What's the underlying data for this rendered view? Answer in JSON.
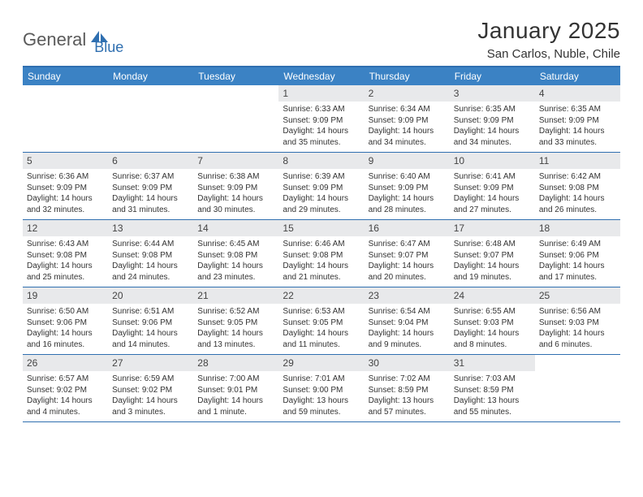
{
  "logo": {
    "part1": "General",
    "part2": "Blue"
  },
  "title": "January 2025",
  "location": "San Carlos, Nuble, Chile",
  "colors": {
    "header_bg": "#3b82c4",
    "header_text": "#ffffff",
    "border": "#2f6fb0",
    "daynum_bg": "#e8e9eb",
    "body_text": "#333333",
    "logo_gray": "#5a5a5a",
    "logo_blue": "#2f6fb0"
  },
  "weekdays": [
    "Sunday",
    "Monday",
    "Tuesday",
    "Wednesday",
    "Thursday",
    "Friday",
    "Saturday"
  ],
  "weeks": [
    [
      {
        "n": "",
        "sr": "",
        "ss": "",
        "dl": ""
      },
      {
        "n": "",
        "sr": "",
        "ss": "",
        "dl": ""
      },
      {
        "n": "",
        "sr": "",
        "ss": "",
        "dl": ""
      },
      {
        "n": "1",
        "sr": "Sunrise: 6:33 AM",
        "ss": "Sunset: 9:09 PM",
        "dl": "Daylight: 14 hours and 35 minutes."
      },
      {
        "n": "2",
        "sr": "Sunrise: 6:34 AM",
        "ss": "Sunset: 9:09 PM",
        "dl": "Daylight: 14 hours and 34 minutes."
      },
      {
        "n": "3",
        "sr": "Sunrise: 6:35 AM",
        "ss": "Sunset: 9:09 PM",
        "dl": "Daylight: 14 hours and 34 minutes."
      },
      {
        "n": "4",
        "sr": "Sunrise: 6:35 AM",
        "ss": "Sunset: 9:09 PM",
        "dl": "Daylight: 14 hours and 33 minutes."
      }
    ],
    [
      {
        "n": "5",
        "sr": "Sunrise: 6:36 AM",
        "ss": "Sunset: 9:09 PM",
        "dl": "Daylight: 14 hours and 32 minutes."
      },
      {
        "n": "6",
        "sr": "Sunrise: 6:37 AM",
        "ss": "Sunset: 9:09 PM",
        "dl": "Daylight: 14 hours and 31 minutes."
      },
      {
        "n": "7",
        "sr": "Sunrise: 6:38 AM",
        "ss": "Sunset: 9:09 PM",
        "dl": "Daylight: 14 hours and 30 minutes."
      },
      {
        "n": "8",
        "sr": "Sunrise: 6:39 AM",
        "ss": "Sunset: 9:09 PM",
        "dl": "Daylight: 14 hours and 29 minutes."
      },
      {
        "n": "9",
        "sr": "Sunrise: 6:40 AM",
        "ss": "Sunset: 9:09 PM",
        "dl": "Daylight: 14 hours and 28 minutes."
      },
      {
        "n": "10",
        "sr": "Sunrise: 6:41 AM",
        "ss": "Sunset: 9:09 PM",
        "dl": "Daylight: 14 hours and 27 minutes."
      },
      {
        "n": "11",
        "sr": "Sunrise: 6:42 AM",
        "ss": "Sunset: 9:08 PM",
        "dl": "Daylight: 14 hours and 26 minutes."
      }
    ],
    [
      {
        "n": "12",
        "sr": "Sunrise: 6:43 AM",
        "ss": "Sunset: 9:08 PM",
        "dl": "Daylight: 14 hours and 25 minutes."
      },
      {
        "n": "13",
        "sr": "Sunrise: 6:44 AM",
        "ss": "Sunset: 9:08 PM",
        "dl": "Daylight: 14 hours and 24 minutes."
      },
      {
        "n": "14",
        "sr": "Sunrise: 6:45 AM",
        "ss": "Sunset: 9:08 PM",
        "dl": "Daylight: 14 hours and 23 minutes."
      },
      {
        "n": "15",
        "sr": "Sunrise: 6:46 AM",
        "ss": "Sunset: 9:08 PM",
        "dl": "Daylight: 14 hours and 21 minutes."
      },
      {
        "n": "16",
        "sr": "Sunrise: 6:47 AM",
        "ss": "Sunset: 9:07 PM",
        "dl": "Daylight: 14 hours and 20 minutes."
      },
      {
        "n": "17",
        "sr": "Sunrise: 6:48 AM",
        "ss": "Sunset: 9:07 PM",
        "dl": "Daylight: 14 hours and 19 minutes."
      },
      {
        "n": "18",
        "sr": "Sunrise: 6:49 AM",
        "ss": "Sunset: 9:06 PM",
        "dl": "Daylight: 14 hours and 17 minutes."
      }
    ],
    [
      {
        "n": "19",
        "sr": "Sunrise: 6:50 AM",
        "ss": "Sunset: 9:06 PM",
        "dl": "Daylight: 14 hours and 16 minutes."
      },
      {
        "n": "20",
        "sr": "Sunrise: 6:51 AM",
        "ss": "Sunset: 9:06 PM",
        "dl": "Daylight: 14 hours and 14 minutes."
      },
      {
        "n": "21",
        "sr": "Sunrise: 6:52 AM",
        "ss": "Sunset: 9:05 PM",
        "dl": "Daylight: 14 hours and 13 minutes."
      },
      {
        "n": "22",
        "sr": "Sunrise: 6:53 AM",
        "ss": "Sunset: 9:05 PM",
        "dl": "Daylight: 14 hours and 11 minutes."
      },
      {
        "n": "23",
        "sr": "Sunrise: 6:54 AM",
        "ss": "Sunset: 9:04 PM",
        "dl": "Daylight: 14 hours and 9 minutes."
      },
      {
        "n": "24",
        "sr": "Sunrise: 6:55 AM",
        "ss": "Sunset: 9:03 PM",
        "dl": "Daylight: 14 hours and 8 minutes."
      },
      {
        "n": "25",
        "sr": "Sunrise: 6:56 AM",
        "ss": "Sunset: 9:03 PM",
        "dl": "Daylight: 14 hours and 6 minutes."
      }
    ],
    [
      {
        "n": "26",
        "sr": "Sunrise: 6:57 AM",
        "ss": "Sunset: 9:02 PM",
        "dl": "Daylight: 14 hours and 4 minutes."
      },
      {
        "n": "27",
        "sr": "Sunrise: 6:59 AM",
        "ss": "Sunset: 9:02 PM",
        "dl": "Daylight: 14 hours and 3 minutes."
      },
      {
        "n": "28",
        "sr": "Sunrise: 7:00 AM",
        "ss": "Sunset: 9:01 PM",
        "dl": "Daylight: 14 hours and 1 minute."
      },
      {
        "n": "29",
        "sr": "Sunrise: 7:01 AM",
        "ss": "Sunset: 9:00 PM",
        "dl": "Daylight: 13 hours and 59 minutes."
      },
      {
        "n": "30",
        "sr": "Sunrise: 7:02 AM",
        "ss": "Sunset: 8:59 PM",
        "dl": "Daylight: 13 hours and 57 minutes."
      },
      {
        "n": "31",
        "sr": "Sunrise: 7:03 AM",
        "ss": "Sunset: 8:59 PM",
        "dl": "Daylight: 13 hours and 55 minutes."
      },
      {
        "n": "",
        "sr": "",
        "ss": "",
        "dl": ""
      }
    ]
  ]
}
